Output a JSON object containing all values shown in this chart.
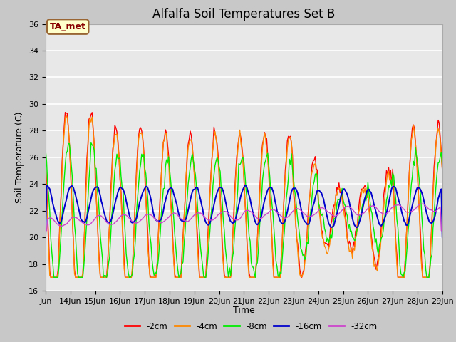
{
  "title": "Alfalfa Soil Temperatures Set B",
  "xlabel": "Time",
  "ylabel": "Soil Temperature (C)",
  "ylim": [
    16,
    36
  ],
  "xlim": [
    0,
    384
  ],
  "fig_facecolor": "#c8c8c8",
  "plot_facecolor": "#e8e8e8",
  "annotation_text": "TA_met",
  "annotation_facecolor": "#ffffcc",
  "annotation_edgecolor": "#996633",
  "annotation_textcolor": "#880000",
  "color_2cm": "#ff0000",
  "color_4cm": "#ff8800",
  "color_8cm": "#00ee00",
  "color_16cm": "#0000cc",
  "color_32cm": "#cc44cc",
  "legend_labels": [
    "-2cm",
    "-4cm",
    "-8cm",
    "-16cm",
    "-32cm"
  ],
  "yticks": [
    16,
    18,
    20,
    22,
    24,
    26,
    28,
    30,
    32,
    34,
    36
  ],
  "grid_color": "#ffffff",
  "title_fontsize": 12,
  "axis_label_fontsize": 9,
  "tick_fontsize": 8
}
